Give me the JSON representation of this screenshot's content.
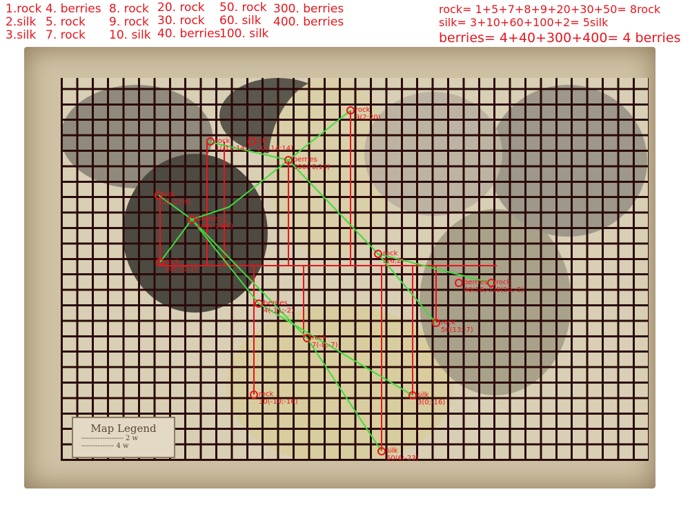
{
  "item_list": [
    [
      "1.rock",
      "2.silk",
      "3.silk"
    ],
    [
      "4. berries",
      "5. rock",
      "7. rock"
    ],
    [
      "8. rock",
      "9. rock",
      "10. silk"
    ],
    [
      "20. rock",
      "30. rock",
      "40. berries"
    ],
    [
      "50. rock",
      "60. silk",
      "100. silk"
    ],
    [
      "300. berries",
      "400. berries"
    ]
  ],
  "totals": {
    "rock": "rock= 1+5+7+8+9+20+30+50= 8rock",
    "silk": "silk= 3+10+60+100+2= 5silk",
    "berries": "berries= 4+40+300+400= 4 berries"
  },
  "legend": {
    "title": "Map Legend",
    "row1": "------------------ 2 w",
    "row2": "-------------- 4 w"
  },
  "colors": {
    "annotation": "#e8141b",
    "path": "#3ddc3d",
    "grid": "#2a0a08",
    "parchment": "#cfc2a4"
  },
  "points": [
    {
      "name": "rock",
      "label": "1(-11;14)"
    },
    {
      "name": "silk",
      "label": "2(-22;9)"
    },
    {
      "name": "silk",
      "label": "3(0;-16)"
    },
    {
      "name": "berries",
      "label": "4(-11;-2)"
    },
    {
      "name": "rock",
      "label": "5(6;2)"
    },
    {
      "name": "rock",
      "label": "7(-8;-7)"
    },
    {
      "name": "rock",
      "label": "8(20;-2)"
    },
    {
      "name": "rock",
      "label": "9(2;20)"
    },
    {
      "name": "silk",
      "label": "10(-14;14)"
    },
    {
      "name": "rock",
      "label": "20(-21;1)"
    },
    {
      "name": "rock",
      "label": "30(-10;-16)"
    },
    {
      "name": "berries",
      "label": "40(16;-2)"
    },
    {
      "name": "rock",
      "label": "50(13;-7)"
    },
    {
      "name": "silk",
      "label": "60(6;-23)"
    },
    {
      "name": "berries",
      "label": "300(-6;13)"
    },
    {
      "name": "berries",
      "label": "400(-18;6)"
    }
  ]
}
